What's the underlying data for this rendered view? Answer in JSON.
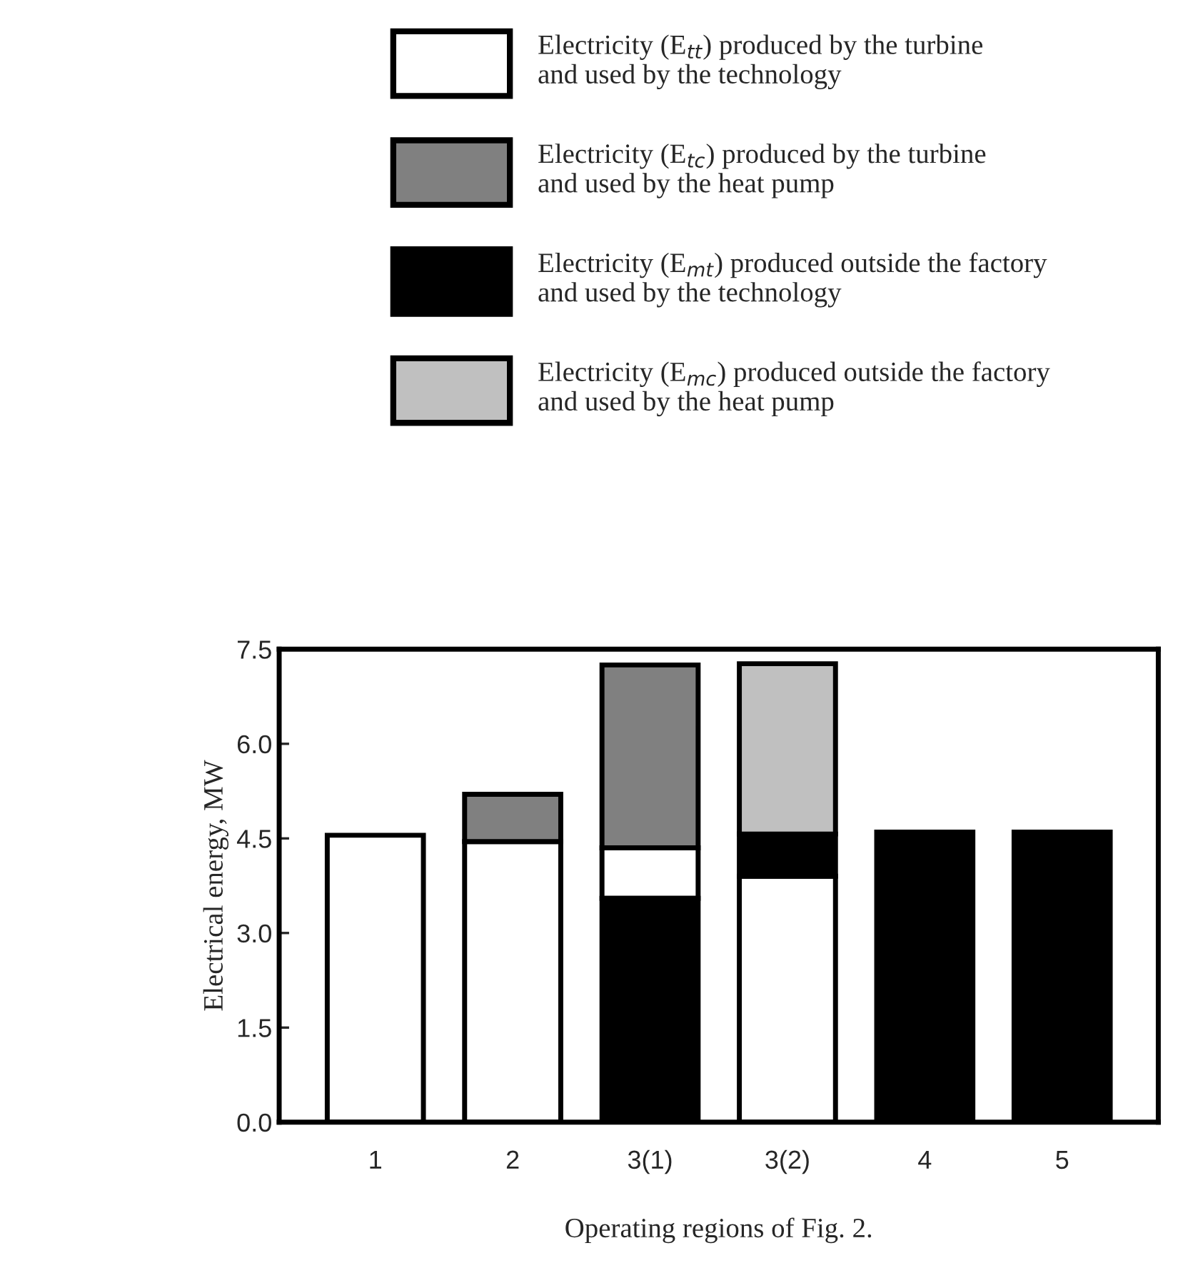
{
  "chart_data": {
    "type": "bar",
    "xlabel": "Operating regions of Fig. 2.",
    "ylabel": "Electrical energy, MW",
    "categories": [
      "1",
      "2",
      "3(1)",
      "3(2)",
      "4",
      "5"
    ],
    "series": [
      {
        "name": "Electricity (E$_{tt}$) produced by the turbine\nand used by the technology",
        "color": "#ffffff",
        "values": [
          4.55,
          4.45,
          0.8,
          3.9,
          null,
          null
        ],
        "base": [
          0,
          0,
          3.55,
          0,
          null,
          null
        ]
      },
      {
        "name": "Electricity (E$_{tc}$) produced by the turbine\nand used by the heat pump",
        "color": "#808080",
        "values": [
          null,
          0.75,
          2.9,
          null,
          null,
          null
        ],
        "base": [
          null,
          4.45,
          4.35,
          null,
          null,
          null
        ]
      },
      {
        "name": "Electricity (E$_{mt}$) produced outside the factory\nand used by the technology",
        "color": "#000000",
        "values": [
          null,
          null,
          3.55,
          0.67,
          4.6,
          4.6
        ],
        "base": [
          null,
          null,
          0,
          3.9,
          0,
          0
        ]
      },
      {
        "name": "Electricity (E$_{mc}$) produced outside the factory\nand used by the heat pump",
        "color": "#c0c0c0",
        "values": [
          null,
          null,
          null,
          2.7,
          null,
          null
        ],
        "base": [
          null,
          null,
          null,
          4.57,
          null,
          null
        ]
      }
    ],
    "ylim": [
      0,
      7.5
    ],
    "yticks": [
      {
        "value": 0,
        "label": "0.0"
      },
      {
        "value": 1.5,
        "label": "1.5"
      },
      {
        "value": 3,
        "label": "3.0"
      },
      {
        "value": 4.5,
        "label": "4.5"
      },
      {
        "value": 6,
        "label": "6.0"
      },
      {
        "value": 7.5,
        "label": "7.5"
      }
    ],
    "legend": "top",
    "grid": false
  }
}
